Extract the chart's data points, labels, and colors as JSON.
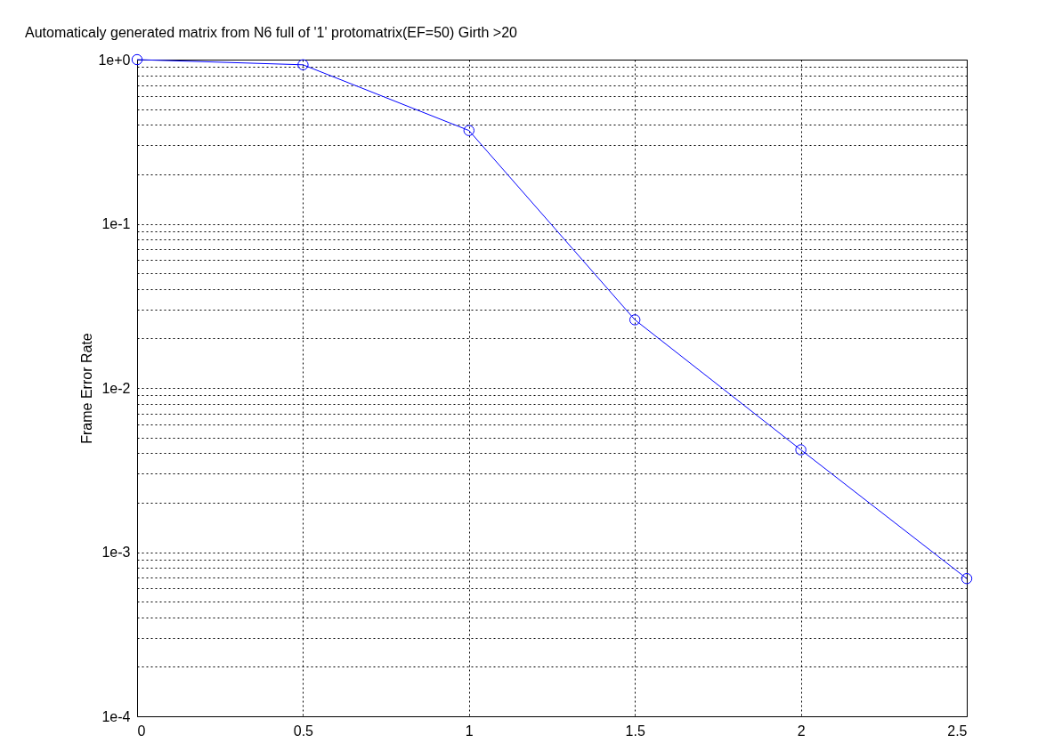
{
  "chart_data": {
    "type": "line",
    "title": "Automaticaly generated matrix from N6 full of '1' protomatrix(EF=50) Girth >20",
    "ylabel": "Frame Error Rate",
    "x": [
      0,
      0.5,
      1,
      1.5,
      2,
      2.5
    ],
    "series": [
      {
        "color": "#0000ff",
        "values": [
          1.0,
          0.93,
          0.37,
          0.026,
          0.0042,
          0.00069
        ]
      }
    ],
    "xlim": [
      0,
      2.5
    ],
    "xticks": [
      0,
      0.5,
      1,
      1.5,
      2,
      2.5
    ],
    "ylim": [
      0.0001,
      1
    ],
    "log": true,
    "yticks": [
      {
        "value": 0.0001,
        "label": "1e-4"
      },
      {
        "value": 0.0002,
        "label": null
      },
      {
        "value": 0.0003,
        "label": null
      },
      {
        "value": 0.0004,
        "label": null
      },
      {
        "value": 0.0005,
        "label": null
      },
      {
        "value": 0.0006,
        "label": null
      },
      {
        "value": 0.0007,
        "label": null
      },
      {
        "value": 0.0008,
        "label": null
      },
      {
        "value": 0.0009,
        "label": null
      },
      {
        "value": 0.001,
        "label": "1e-3"
      },
      {
        "value": 0.002,
        "label": null
      },
      {
        "value": 0.003,
        "label": null
      },
      {
        "value": 0.004,
        "label": null
      },
      {
        "value": 0.005,
        "label": null
      },
      {
        "value": 0.006,
        "label": null
      },
      {
        "value": 0.007,
        "label": null
      },
      {
        "value": 0.008,
        "label": null
      },
      {
        "value": 0.009,
        "label": null
      },
      {
        "value": 0.01,
        "label": "1e-2"
      },
      {
        "value": 0.02,
        "label": null
      },
      {
        "value": 0.03,
        "label": null
      },
      {
        "value": 0.04,
        "label": null
      },
      {
        "value": 0.05,
        "label": null
      },
      {
        "value": 0.06,
        "label": null
      },
      {
        "value": 0.07,
        "label": null
      },
      {
        "value": 0.08,
        "label": null
      },
      {
        "value": 0.09,
        "label": null
      },
      {
        "value": 0.1,
        "label": "1e-1"
      },
      {
        "value": 0.2,
        "label": null
      },
      {
        "value": 0.3,
        "label": null
      },
      {
        "value": 0.4,
        "label": null
      },
      {
        "value": 0.5,
        "label": null
      },
      {
        "value": 0.6,
        "label": null
      },
      {
        "value": 0.7,
        "label": null
      },
      {
        "value": 0.8,
        "label": null
      },
      {
        "value": 0.9,
        "label": null
      },
      {
        "value": 1,
        "label": "1e+0"
      }
    ],
    "grid": true,
    "marker": "circle",
    "line_style": "solid"
  }
}
